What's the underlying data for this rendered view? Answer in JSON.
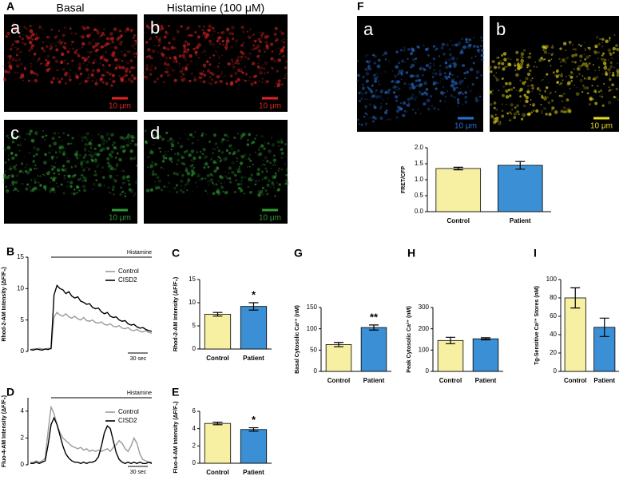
{
  "images": [
    {
      "label": "A",
      "columns": [
        "Basal",
        "Histamine (100 μM)"
      ],
      "tiles": [
        {
          "label": "a",
          "scale_bar": "10 μm",
          "color": "#e02424"
        },
        {
          "label": "b",
          "scale_bar": "10 μm",
          "color": "#e02424"
        },
        {
          "label": "c",
          "scale_bar": "10 μm",
          "color": "#2f9a35"
        },
        {
          "label": "d",
          "scale_bar": "10 μm",
          "color": "#2f9a35"
        }
      ]
    },
    {
      "label": "F",
      "tiles": [
        {
          "label": "a",
          "scale_bar": "10 μm",
          "color": "#2a6fd0"
        },
        {
          "label": "b",
          "scale_bar": "10 μm",
          "color": "#e6dc1e"
        }
      ]
    }
  ],
  "chart_data": [
    {
      "type": "bar",
      "ylabel": "FRET/CFP",
      "categories": [
        "Control",
        "Patient"
      ],
      "values": [
        1.35,
        1.45
      ],
      "errors": [
        0.04,
        0.12
      ],
      "colors": [
        "#f7f0a2",
        "#3b8fd4"
      ],
      "ylim": [
        0,
        2
      ],
      "yticks": [
        {
          "value": 0,
          "label": "0.0"
        },
        {
          "value": 0.5,
          "label": "0.5"
        },
        {
          "value": 1,
          "label": "1.0"
        },
        {
          "value": 1.5,
          "label": "1.5"
        },
        {
          "value": 2,
          "label": "2.0"
        }
      ]
    },
    {
      "type": "line",
      "label": "B",
      "ylabel": "Rhod-2-AM Intensity (ΔF/F₀)",
      "annotation": "Histamine",
      "scale_bar": "30 sec",
      "legend": "upper right",
      "ylim": [
        0,
        15
      ],
      "yticks": [
        0,
        5,
        10,
        15
      ],
      "series": [
        {
          "name": "Control",
          "color": "#9a9a9a",
          "values": [
            0.3,
            0.4,
            0.3,
            0.5,
            0.4,
            0.3,
            0.5,
            0.4,
            5.5,
            6.2,
            5.8,
            5.6,
            6.0,
            5.5,
            5.3,
            5.6,
            5.2,
            5.0,
            5.4,
            4.9,
            4.8,
            5.0,
            4.6,
            4.5,
            4.7,
            4.3,
            4.2,
            4.4,
            4.0,
            3.9,
            4.1,
            3.7,
            3.6,
            3.8,
            3.4,
            3.3,
            3.5,
            3.2,
            3.1,
            3.3,
            3.0,
            2.9
          ]
        },
        {
          "name": "CISD2",
          "color": "#000000",
          "values": [
            0.3,
            0.2,
            0.4,
            0.3,
            0.2,
            0.4,
            0.3,
            0.5,
            9.0,
            10.5,
            10.0,
            9.8,
            9.2,
            9.5,
            8.8,
            8.5,
            8.7,
            8.0,
            7.8,
            7.5,
            7.6,
            7.0,
            6.8,
            6.9,
            6.3,
            6.0,
            6.2,
            5.6,
            5.4,
            5.5,
            5.0,
            4.8,
            4.9,
            4.4,
            4.2,
            4.3,
            3.9,
            3.7,
            3.8,
            3.5,
            3.3,
            3.2
          ]
        }
      ]
    },
    {
      "type": "bar",
      "label": "C",
      "ylabel": "Rhod-2-AM Intensity (ΔF/F₀)",
      "categories": [
        "Control",
        "Patient"
      ],
      "values": [
        7.5,
        9.2
      ],
      "errors": [
        0.4,
        0.8
      ],
      "annotations": [
        null,
        "*"
      ],
      "colors": [
        "#f7f0a2",
        "#3b8fd4"
      ],
      "ylim": [
        0,
        15
      ],
      "yticks": [
        0,
        5,
        10,
        15
      ]
    },
    {
      "type": "line",
      "label": "D",
      "ylabel": "Fluo-4-AM Intensity (ΔF/F₀)",
      "annotation": "Histamine",
      "scale_bar": "30 sec",
      "legend": "upper right",
      "ylim": [
        0,
        5
      ],
      "yticks": [
        0,
        2,
        4
      ],
      "series": [
        {
          "name": "Control",
          "color": "#9a9a9a",
          "values": [
            0.2,
            0.2,
            0.3,
            0.2,
            0.3,
            0.5,
            2.5,
            4.3,
            3.8,
            3.0,
            2.4,
            2.0,
            1.8,
            1.6,
            1.4,
            1.3,
            1.2,
            1.3,
            1.1,
            1.2,
            1.0,
            1.1,
            1.0,
            1.1,
            1.0,
            1.1,
            1.2,
            1.0,
            1.3,
            1.5,
            1.8,
            1.6,
            1.2,
            1.0,
            1.4,
            2.0,
            1.6,
            0.8,
            0.4,
            0.3,
            0.2,
            0.2
          ]
        },
        {
          "name": "CISD2",
          "color": "#000000",
          "values": [
            0.1,
            0.1,
            0.2,
            0.1,
            0.2,
            0.3,
            1.5,
            3.0,
            3.5,
            3.0,
            2.2,
            1.4,
            0.8,
            0.5,
            0.3,
            0.2,
            0.2,
            0.1,
            0.2,
            0.1,
            0.2,
            0.2,
            0.3,
            0.6,
            1.4,
            2.4,
            2.9,
            2.7,
            1.8,
            0.9,
            0.4,
            0.2,
            0.1,
            0.2,
            0.1,
            0.2,
            0.1,
            0.2,
            0.1,
            0.1,
            0.2,
            0.1
          ]
        }
      ]
    },
    {
      "type": "bar",
      "label": "E",
      "ylabel": "Fluo-4-AM Intensity (ΔF/F₀)",
      "categories": [
        "Control",
        "Patient"
      ],
      "values": [
        4.6,
        3.9
      ],
      "errors": [
        0.15,
        0.2
      ],
      "annotations": [
        null,
        "*"
      ],
      "colors": [
        "#f7f0a2",
        "#3b8fd4"
      ],
      "ylim": [
        0,
        6
      ],
      "yticks": [
        0,
        2,
        4,
        6
      ]
    },
    {
      "type": "bar",
      "label": "G",
      "ylabel": "Basal Cytosolic Ca²⁺ (nM)",
      "categories": [
        "Control",
        "Patient"
      ],
      "values": [
        63,
        103
      ],
      "errors": [
        5,
        6
      ],
      "annotations": [
        null,
        "**"
      ],
      "colors": [
        "#f7f0a2",
        "#3b8fd4"
      ],
      "ylim": [
        0,
        150
      ],
      "yticks": [
        0,
        50,
        100,
        150
      ]
    },
    {
      "type": "bar",
      "label": "H",
      "ylabel": "Peak Cytosolic Ca²⁺ (nM)",
      "categories": [
        "Control",
        "Patient"
      ],
      "values": [
        145,
        153
      ],
      "errors": [
        15,
        5
      ],
      "colors": [
        "#f7f0a2",
        "#3b8fd4"
      ],
      "ylim": [
        0,
        300
      ],
      "yticks": [
        0,
        100,
        200,
        300
      ]
    },
    {
      "type": "bar",
      "label": "I",
      "ylabel": "Tg-Sensitive Ca²⁺ Stores (nM)",
      "categories": [
        "Control",
        "Patient"
      ],
      "values": [
        80,
        48
      ],
      "errors": [
        11,
        10
      ],
      "colors": [
        "#f7f0a2",
        "#3b8fd4"
      ],
      "ylim": [
        0,
        100
      ],
      "yticks": [
        0,
        20,
        40,
        60,
        80,
        100
      ]
    }
  ]
}
